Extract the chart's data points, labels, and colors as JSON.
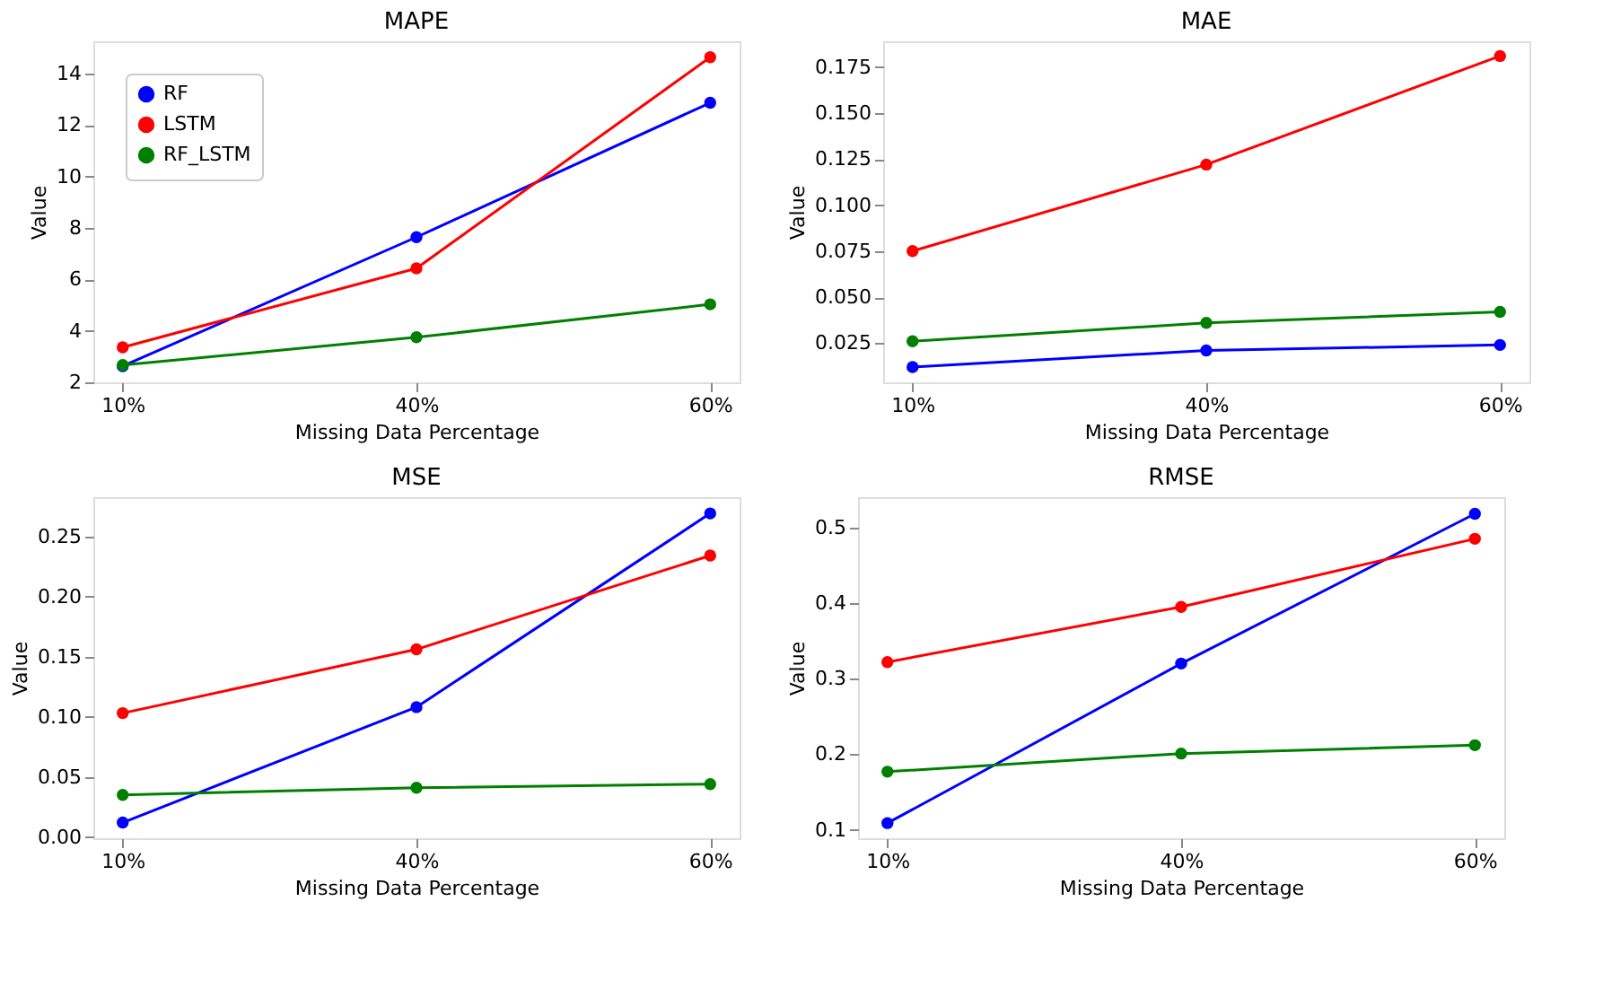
{
  "chart_data": [
    {
      "type": "line",
      "title": "MAPE",
      "xlabel": "Missing Data Percentage",
      "ylabel": "Value",
      "categories": [
        "10%",
        "40%",
        "60%"
      ],
      "ylim": [
        2.0,
        15.25
      ],
      "yticks": [
        2,
        4,
        6,
        8,
        10,
        12,
        14
      ],
      "legend": "top left",
      "marker": "circle",
      "grid": false,
      "series": [
        {
          "name": "RF",
          "color": "#0000ff",
          "values": [
            2.63,
            7.64,
            12.86
          ]
        },
        {
          "name": "LSTM",
          "color": "#ff0000",
          "values": [
            3.36,
            6.43,
            14.63
          ]
        },
        {
          "name": "RF_LSTM",
          "color": "#008000",
          "values": [
            2.67,
            3.75,
            5.03
          ]
        }
      ]
    },
    {
      "type": "line",
      "title": "MAE",
      "xlabel": "Missing Data Percentage",
      "ylabel": "Value",
      "categories": [
        "10%",
        "40%",
        "60%"
      ],
      "ylim": [
        0.0037,
        0.189
      ],
      "yticks": [
        {
          "value": 0.025,
          "label": "0.025"
        },
        {
          "value": 0.05,
          "label": "0.050"
        },
        {
          "value": 0.075,
          "label": "0.075"
        },
        {
          "value": 0.1,
          "label": "0.100"
        },
        {
          "value": 0.125,
          "label": "0.125"
        },
        {
          "value": 0.15,
          "label": "0.150"
        },
        {
          "value": 0.175,
          "label": "0.175"
        }
      ],
      "legend": "top left",
      "marker": "circle",
      "grid": false,
      "series": [
        {
          "name": "RF",
          "color": "#0000ff",
          "values": [
            0.012,
            0.021,
            0.024
          ]
        },
        {
          "name": "LSTM",
          "color": "#ff0000",
          "values": [
            0.075,
            0.122,
            0.181
          ]
        },
        {
          "name": "RF_LSTM",
          "color": "#008000",
          "values": [
            0.026,
            0.036,
            0.042
          ]
        }
      ]
    },
    {
      "type": "line",
      "title": "MSE",
      "xlabel": "Missing Data Percentage",
      "ylabel": "Value",
      "categories": [
        "10%",
        "40%",
        "60%"
      ],
      "ylim": [
        -0.001,
        0.2825
      ],
      "yticks": [
        {
          "value": 0,
          "label": "0.00"
        },
        {
          "value": 0.05,
          "label": "0.05"
        },
        {
          "value": 0.1,
          "label": "0.10"
        },
        {
          "value": 0.15,
          "label": "0.15"
        },
        {
          "value": 0.2,
          "label": "0.20"
        },
        {
          "value": 0.25,
          "label": "0.25"
        }
      ],
      "legend": "top left",
      "marker": "circle",
      "grid": false,
      "series": [
        {
          "name": "RF",
          "color": "#0000ff",
          "values": [
            0.012,
            0.108,
            0.269
          ]
        },
        {
          "name": "LSTM",
          "color": "#ff0000",
          "values": [
            0.103,
            0.156,
            0.234
          ]
        },
        {
          "name": "RF_LSTM",
          "color": "#008000",
          "values": [
            0.035,
            0.041,
            0.044
          ]
        }
      ]
    },
    {
      "type": "line",
      "title": "RMSE",
      "xlabel": "Missing Data Percentage",
      "ylabel": "Value",
      "categories": [
        "10%",
        "40%",
        "60%"
      ],
      "ylim": [
        0.089,
        0.54
      ],
      "yticks": [
        0.1,
        0.2,
        0.3,
        0.4,
        0.5
      ],
      "legend": "top left",
      "marker": "circle",
      "grid": false,
      "series": [
        {
          "name": "RF",
          "color": "#0000ff",
          "values": [
            0.109,
            0.32,
            0.518
          ]
        },
        {
          "name": "LSTM",
          "color": "#ff0000",
          "values": [
            0.322,
            0.395,
            0.485
          ]
        },
        {
          "name": "RF_LSTM",
          "color": "#008000",
          "values": [
            0.177,
            0.201,
            0.212
          ]
        }
      ]
    }
  ]
}
